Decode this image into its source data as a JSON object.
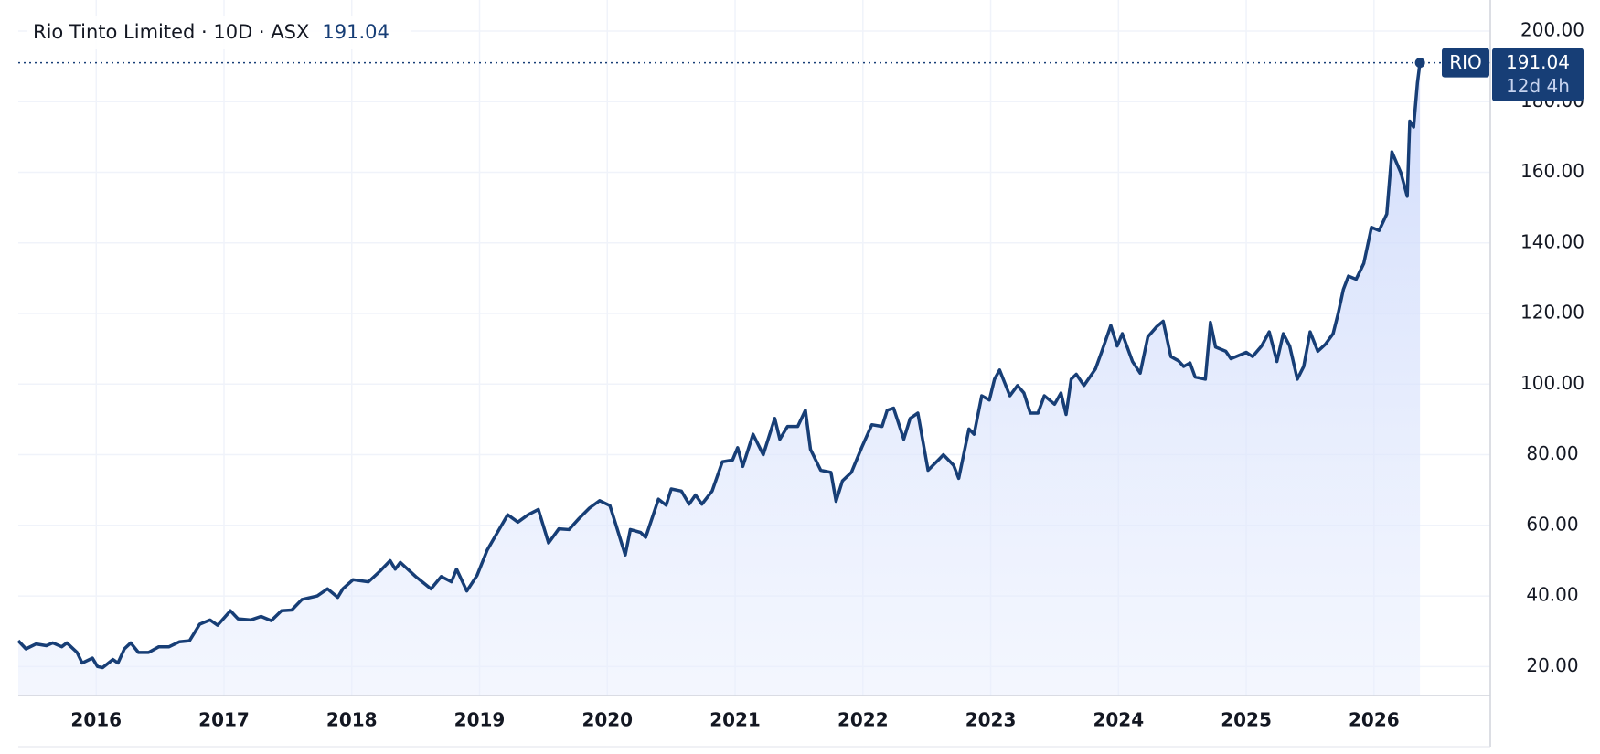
{
  "chart_data": {
    "type": "area",
    "title": "Rio Tinto Limited · 10D · ASX",
    "countdown": "12d 4h",
    "x": [
      2015.39,
      2015.45,
      2015.53,
      2015.61,
      2015.66,
      2015.73,
      2015.77,
      2015.85,
      2015.89,
      2015.97,
      2016.01,
      2016.05,
      2016.13,
      2016.17,
      2016.22,
      2016.27,
      2016.33,
      2016.41,
      2016.49,
      2016.57,
      2016.65,
      2016.73,
      2016.81,
      2016.89,
      2016.95,
      2017.05,
      2017.11,
      2017.21,
      2017.29,
      2017.37,
      2017.45,
      2017.53,
      2017.61,
      2017.73,
      2017.81,
      2017.89,
      2017.93,
      2018.01,
      2018.13,
      2018.22,
      2018.3,
      2018.34,
      2018.38,
      2018.5,
      2018.62,
      2018.7,
      2018.78,
      2018.82,
      2018.9,
      2018.98,
      2019.06,
      2019.14,
      2019.22,
      2019.3,
      2019.38,
      2019.46,
      2019.54,
      2019.62,
      2019.7,
      2019.78,
      2019.86,
      2019.94,
      2020.02,
      2020.06,
      2020.14,
      2020.18,
      2020.26,
      2020.3,
      2020.4,
      2020.46,
      2020.5,
      2020.58,
      2020.64,
      2020.69,
      2020.74,
      2020.82,
      2020.9,
      2020.98,
      2021.02,
      2021.06,
      2021.14,
      2021.22,
      2021.31,
      2021.35,
      2021.41,
      2021.49,
      2021.55,
      2021.59,
      2021.67,
      2021.75,
      2021.79,
      2021.84,
      2021.91,
      2021.99,
      2022.07,
      2022.15,
      2022.19,
      2022.24,
      2022.32,
      2022.37,
      2022.43,
      2022.51,
      2022.59,
      2022.63,
      2022.71,
      2022.75,
      2022.83,
      2022.87,
      2022.93,
      2022.99,
      2023.03,
      2023.07,
      2023.15,
      2023.21,
      2023.26,
      2023.31,
      2023.37,
      2023.42,
      2023.5,
      2023.55,
      2023.59,
      2023.63,
      2023.67,
      2023.73,
      2023.82,
      2023.87,
      2023.94,
      2023.99,
      2024.03,
      2024.11,
      2024.17,
      2024.23,
      2024.3,
      2024.35,
      2024.41,
      2024.47,
      2024.51,
      2024.56,
      2024.6,
      2024.68,
      2024.72,
      2024.76,
      2024.84,
      2024.88,
      2024.96,
      2025.0,
      2025.05,
      2025.12,
      2025.18,
      2025.24,
      2025.29,
      2025.34,
      2025.4,
      2025.45,
      2025.5,
      2025.56,
      2025.62,
      2025.68,
      2025.72,
      2025.76,
      2025.8,
      2025.86,
      2025.92,
      2025.98,
      2026.04,
      2026.1,
      2026.14,
      2026.21,
      2026.26,
      2026.28,
      2026.31,
      2026.34,
      2026.36
    ],
    "series": [
      {
        "name": "RIO",
        "color": "#173e76",
        "values": [
          27.3,
          25,
          26.4,
          25.9,
          26.7,
          25.6,
          26.7,
          24,
          21,
          22.4,
          20,
          19.7,
          22,
          21,
          25,
          26.7,
          24,
          24,
          25.6,
          25.6,
          27,
          27.3,
          32,
          33.2,
          31.7,
          35.8,
          33.5,
          33.2,
          34.2,
          33,
          35.8,
          36,
          39,
          40,
          42,
          39.6,
          42,
          44.6,
          44,
          47,
          50,
          47.6,
          49.5,
          45.5,
          42,
          45.5,
          44,
          47.6,
          41.4,
          45.8,
          53,
          58,
          63,
          60.9,
          63,
          64.5,
          55,
          59,
          58.8,
          62,
          64.9,
          67,
          65.6,
          61,
          51.6,
          58.8,
          58,
          56.6,
          67.4,
          65.7,
          70.3,
          69.7,
          66,
          68.6,
          66,
          69.7,
          78,
          78.5,
          82,
          76.7,
          85.8,
          80,
          90.3,
          84.4,
          88,
          88,
          92.6,
          81.5,
          75.6,
          75,
          66.8,
          72.6,
          75,
          82,
          88.5,
          88,
          92.6,
          93.2,
          84.4,
          90.3,
          91.8,
          75.6,
          78.5,
          80,
          77,
          73.3,
          87.3,
          85.8,
          96.7,
          95.5,
          101.4,
          104,
          96.7,
          99.6,
          97.5,
          91.8,
          91.8,
          96.7,
          94.3,
          97.5,
          91.4,
          101.4,
          102.8,
          99.6,
          104.3,
          109.3,
          116.6,
          110.8,
          114.3,
          106.4,
          103.1,
          113.4,
          116.3,
          117.8,
          107.8,
          106.6,
          105,
          106,
          102,
          101.4,
          117.5,
          110.5,
          109.3,
          107.2,
          108.4,
          109,
          107.8,
          110.8,
          114.8,
          106.4,
          114.3,
          110.8,
          101.4,
          105,
          114.8,
          109.3,
          111.3,
          114.3,
          120.1,
          126.8,
          130.6,
          129.7,
          134.2,
          144.4,
          143.5,
          148.2,
          165.8,
          159.9,
          153.2,
          174.5,
          172.8,
          185.4,
          191.04
        ]
      }
    ],
    "xlim": [
      2015.39,
      2026.91
    ],
    "ylim": [
      11.8,
      208.8
    ],
    "xticks": [
      2016,
      2017,
      2018,
      2019,
      2020,
      2021,
      2022,
      2023,
      2024,
      2025,
      2026
    ],
    "yticks": [
      {
        "value": 20,
        "label": "20.00"
      },
      {
        "value": 40,
        "label": "40.00"
      },
      {
        "value": 60,
        "label": "60.00"
      },
      {
        "value": 80,
        "label": "80.00"
      },
      {
        "value": 100,
        "label": "100.00"
      },
      {
        "value": 120,
        "label": "120.00"
      },
      {
        "value": 140,
        "label": "140.00"
      },
      {
        "value": 160,
        "label": "160.00"
      },
      {
        "value": 180,
        "label": "180.00"
      },
      {
        "value": 200,
        "label": "200.00"
      }
    ],
    "grid": true
  }
}
